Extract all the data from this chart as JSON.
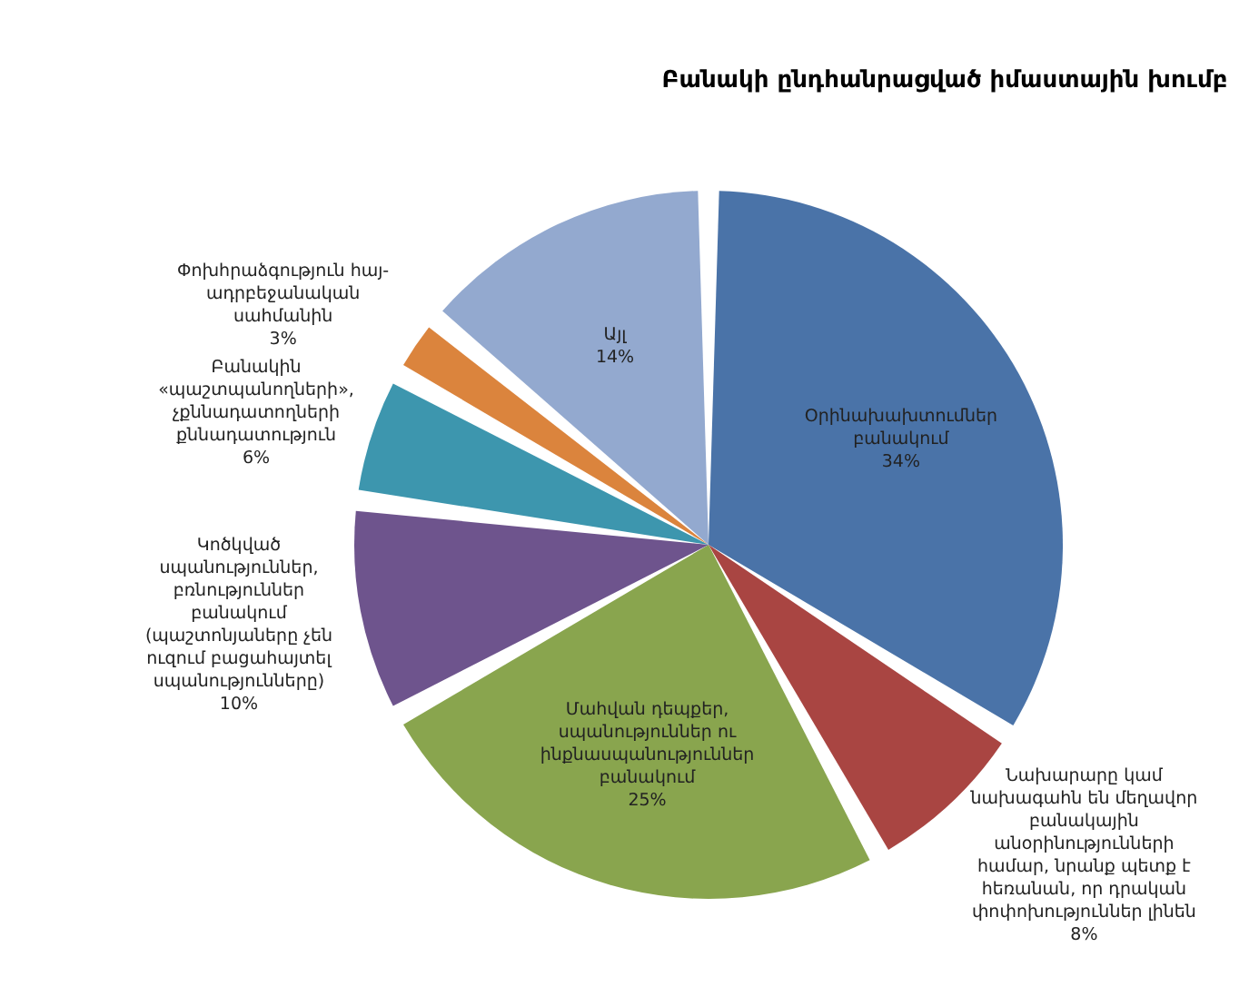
{
  "chart_data": {
    "type": "pie",
    "title": "Բանակի ընդհանրացված իմաստային խումբ",
    "categories": [
      "Օրինախախտումներ\nբանակում",
      "Նախարարը կամ\nնախագահն են մեղավոր\nբանակային\nանօրինությունների\nհամար, նրանք պետք է\nհեռանան, որ դրական\nփոփոխություններ լինեն",
      "Մահվան դեպքեր,\nսպանություններ ու\nինքնասպանություններ\nբանակում",
      "Կոծկված\nսպանություններ,\nբռնություններ\nբանակում\n(պաշտոնյաները չեն\nուզում բացահայտել\nսպանությունները)",
      "Բանակին\n«պաշտպանողների»,\nչքննադատողների\nքննադատություն",
      "Փոխհրաձգություն հայ-\nադրբեջանական\nսահմանին",
      "Այլ"
    ],
    "values": [
      34,
      8,
      25,
      10,
      6,
      3,
      14
    ],
    "colors": [
      "#4a73a8",
      "#a94542",
      "#89a54e",
      "#6e548d",
      "#3d96ae",
      "#db843d",
      "#93a9cf"
    ],
    "value_labels": [
      "34%",
      "8%",
      "25%",
      "10%",
      "6%",
      "3%",
      "14%"
    ]
  }
}
